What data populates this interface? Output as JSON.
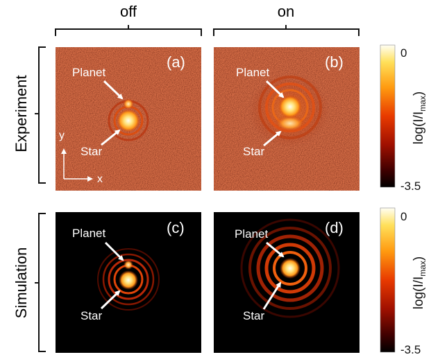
{
  "columns": {
    "off": "off",
    "on": "on"
  },
  "rows": {
    "experiment": "Experiment",
    "simulation": "Simulation"
  },
  "panels": [
    {
      "id": "a",
      "label": "(a)",
      "planet_label": "Planet",
      "star_label": "Star"
    },
    {
      "id": "b",
      "label": "(b)",
      "planet_label": "Planet",
      "star_label": "Star"
    },
    {
      "id": "c",
      "label": "(c)",
      "planet_label": "Planet",
      "star_label": "Star"
    },
    {
      "id": "d",
      "label": "(d)",
      "planet_label": "Planet",
      "star_label": "Star"
    }
  ],
  "axes_indicator": {
    "y": "y",
    "x": "x"
  },
  "colorbar": {
    "label_prefix": "log(I/I",
    "label_sub": "max",
    "label_suffix": ")",
    "max_label": "0",
    "min_label": "-3.5",
    "range": [
      -3.5,
      0
    ]
  },
  "colors": {
    "background_noise": "#5a120a",
    "black": "#000000",
    "hot_mid": "#cc2a00",
    "hot_high": "#ff9a1a",
    "hot_peak": "#fffde0",
    "annotation": "#ffffff"
  }
}
